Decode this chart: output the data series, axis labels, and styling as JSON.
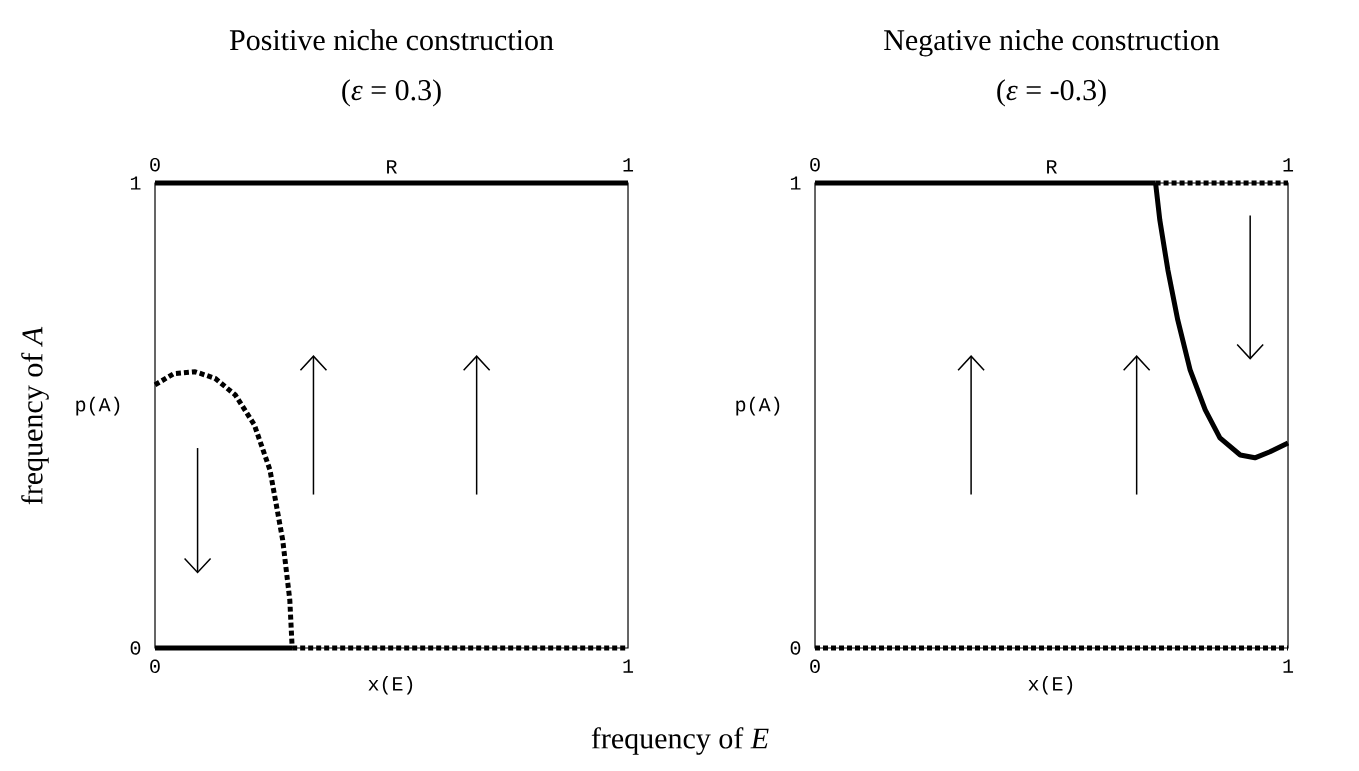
{
  "chart_data": [
    {
      "type": "line",
      "title": "Positive niche construction",
      "subtitle": "(*ε* = 0.3)",
      "xlabel": "x(E)",
      "ylabel": "p(A)",
      "x2label": "R",
      "xlim": [
        0,
        1
      ],
      "ylim": [
        0,
        1
      ],
      "x2lim": [
        0,
        1
      ],
      "xticks": [
        0,
        1
      ],
      "yticks": [
        0,
        1
      ],
      "x2ticks": [
        0,
        1
      ],
      "marker": "none",
      "grid": false,
      "annotations": [
        "frequency of *A*",
        "frequency of *E*"
      ],
      "series": [
        {
          "color": "#000000",
          "line_style": "solid",
          "x": [
            0,
            1
          ],
          "values": [
            1,
            1
          ]
        },
        {
          "color": "#000000",
          "line_style": "solid",
          "x": [
            0,
            0.29
          ],
          "values": [
            0,
            0
          ]
        },
        {
          "color": "#000000",
          "line_style": "dotted",
          "x": [
            0.29,
            1
          ],
          "values": [
            0,
            0
          ]
        },
        {
          "color": "#000000",
          "line_style": "dotted",
          "x": [
            0,
            0.04,
            0.085,
            0.127,
            0.17,
            0.21,
            0.243,
            0.27,
            0.285,
            0.29
          ],
          "values": [
            0.566,
            0.59,
            0.594,
            0.58,
            0.544,
            0.48,
            0.383,
            0.232,
            0.103,
            0
          ]
        }
      ]
    },
    {
      "type": "line",
      "title": "Negative niche construction",
      "subtitle": "(*ε* = -0.3)",
      "xlabel": "x(E)",
      "ylabel": "p(A)",
      "x2label": "R",
      "xlim": [
        0,
        1
      ],
      "ylim": [
        0,
        1
      ],
      "x2lim": [
        0,
        1
      ],
      "xticks": [
        0,
        1
      ],
      "yticks": [
        0,
        1
      ],
      "x2ticks": [
        0,
        1
      ],
      "marker": "none",
      "grid": false,
      "series": [
        {
          "color": "#000000",
          "line_style": "solid",
          "x": [
            0,
            0.72
          ],
          "values": [
            1,
            1
          ]
        },
        {
          "color": "#000000",
          "line_style": "dotted",
          "x": [
            0.72,
            1
          ],
          "values": [
            1,
            1
          ]
        },
        {
          "color": "#000000",
          "line_style": "dotted",
          "x": [
            0,
            1
          ],
          "values": [
            0,
            0
          ]
        },
        {
          "color": "#000000",
          "line_style": "solid",
          "x": [
            0.72,
            0.729,
            0.746,
            0.767,
            0.793,
            0.825,
            0.856,
            0.899,
            0.93,
            0.962,
            1
          ],
          "values": [
            1,
            0.92,
            0.813,
            0.705,
            0.598,
            0.512,
            0.452,
            0.415,
            0.409,
            0.422,
            0.441
          ]
        }
      ]
    }
  ]
}
